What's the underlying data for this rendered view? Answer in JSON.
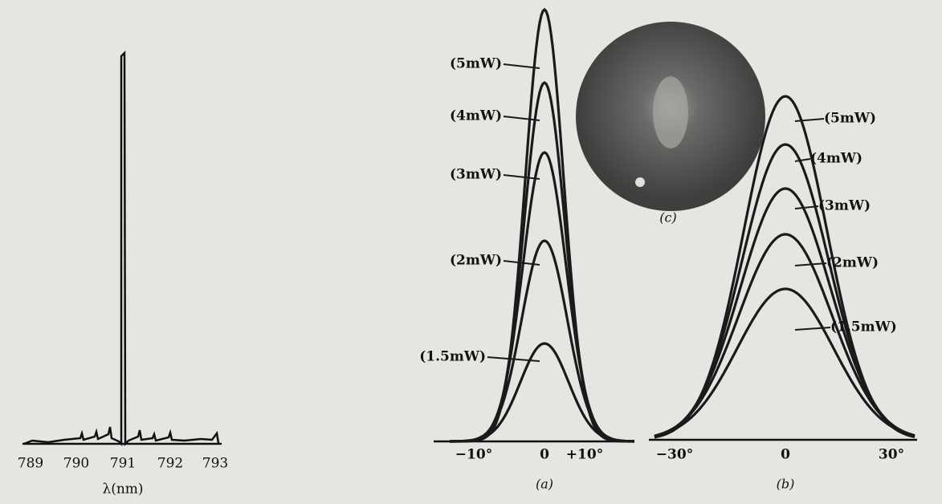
{
  "spectrum": {
    "x_ticks": [
      "789",
      "790",
      "791",
      "792",
      "793"
    ],
    "x_label": "λ(nm)"
  },
  "panel_a": {
    "curve_labels": [
      "(5mW)",
      "(4mW)",
      "(3mW)",
      "(2mW)",
      "(1.5mW)"
    ],
    "x_ticks": [
      "−10°",
      "0",
      "+10°"
    ],
    "caption": "(a)"
  },
  "panel_b": {
    "curve_labels": [
      "(5mW)",
      "(4mW)",
      "(3mW)",
      "(2mW)",
      "(1.5mW)"
    ],
    "x_ticks": [
      "−30°",
      "0",
      "30°"
    ],
    "caption": "(b)"
  },
  "panel_c": {
    "caption": "(c)"
  }
}
